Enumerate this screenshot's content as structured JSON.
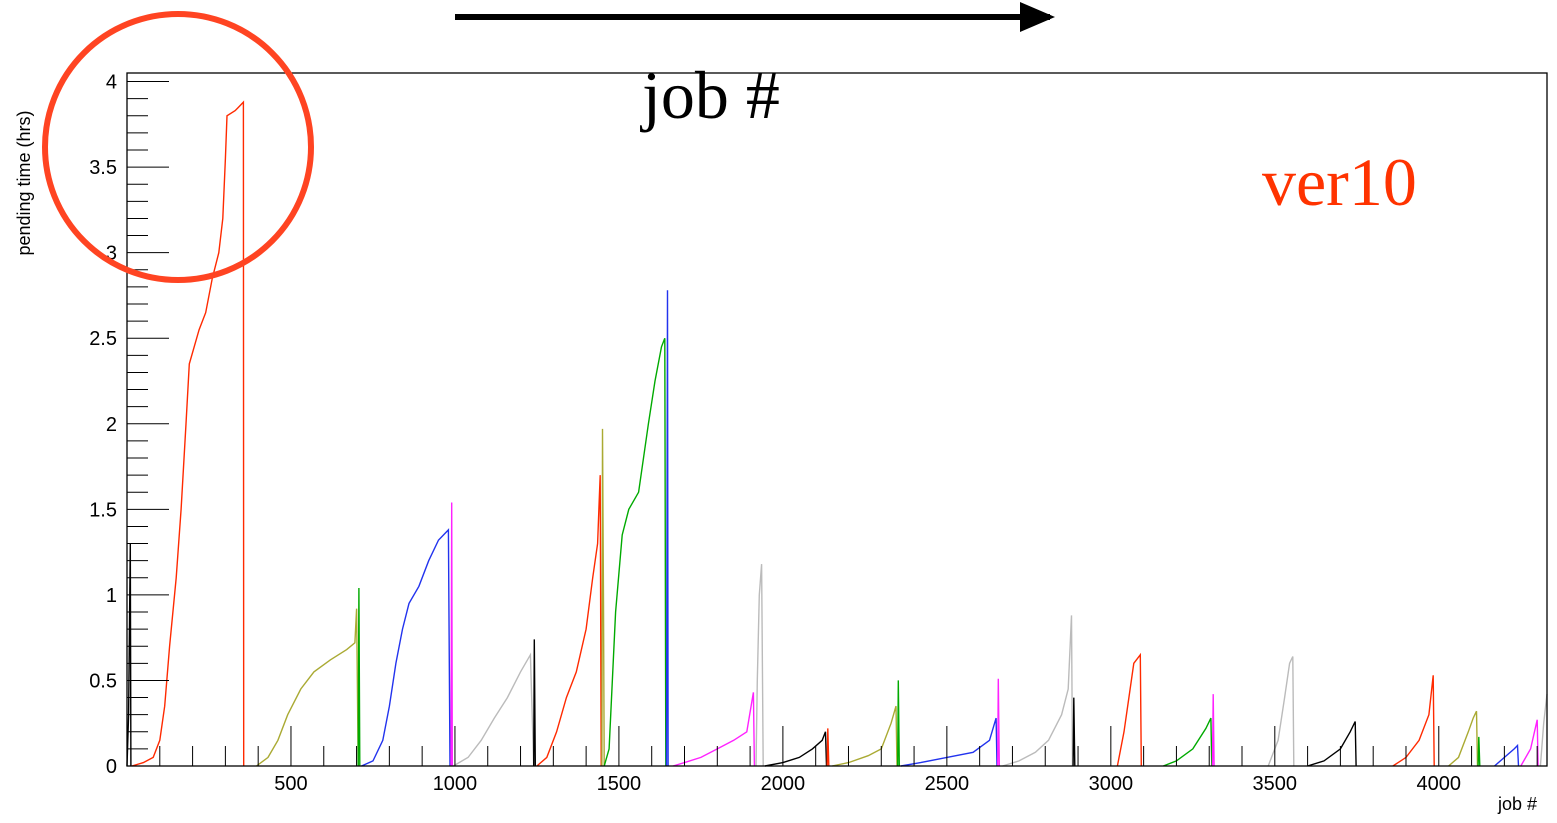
{
  "chart_data": {
    "type": "line",
    "title": "",
    "xlabel": "job #",
    "ylabel": "pending time (hrs)",
    "xlim": [
      0,
      4330
    ],
    "ylim": [
      0,
      4.05
    ],
    "x_ticks": [
      500,
      1000,
      1500,
      2000,
      2500,
      3000,
      3500,
      4000
    ],
    "y_ticks": [
      0,
      0.5,
      1,
      1.5,
      2,
      2.5,
      3,
      3.5,
      4
    ],
    "x_tick_labels": [
      "500",
      "1000",
      "1500",
      "2000",
      "2500",
      "3000",
      "3500",
      "4000"
    ],
    "y_tick_labels": [
      "0",
      "0.5",
      "1",
      "1.5",
      "2",
      "2.5",
      "3",
      "3.5",
      "4"
    ],
    "grid": false,
    "annotations": {
      "arrow_label": "job #",
      "version_label": "ver10",
      "version_color": "#ff3300",
      "circle_color": "#ff4422"
    },
    "series": [
      {
        "color": "#000000",
        "points": [
          [
            0,
            0
          ],
          [
            5,
            0.3
          ],
          [
            10,
            1.3
          ],
          [
            12,
            0
          ]
        ]
      },
      {
        "color": "#ff2a00",
        "points": [
          [
            15,
            0
          ],
          [
            50,
            0.02
          ],
          [
            80,
            0.05
          ],
          [
            100,
            0.15
          ],
          [
            115,
            0.35
          ],
          [
            130,
            0.7
          ],
          [
            150,
            1.1
          ],
          [
            165,
            1.5
          ],
          [
            180,
            2
          ],
          [
            190,
            2.35
          ],
          [
            205,
            2.45
          ],
          [
            220,
            2.55
          ],
          [
            240,
            2.65
          ],
          [
            260,
            2.85
          ],
          [
            280,
            3.0
          ],
          [
            292,
            3.2
          ],
          [
            300,
            3.55
          ],
          [
            305,
            3.8
          ],
          [
            330,
            3.83
          ],
          [
            340,
            3.85
          ],
          [
            355,
            3.88
          ],
          [
            356,
            0
          ]
        ]
      },
      {
        "color": "#aaaa33",
        "points": [
          [
            395,
            0
          ],
          [
            430,
            0.05
          ],
          [
            460,
            0.15
          ],
          [
            490,
            0.3
          ],
          [
            530,
            0.45
          ],
          [
            570,
            0.55
          ],
          [
            620,
            0.62
          ],
          [
            670,
            0.68
          ],
          [
            695,
            0.72
          ],
          [
            700,
            0.92
          ],
          [
            705,
            0
          ]
        ]
      },
      {
        "color": "#00aa00",
        "points": [
          [
            705,
            0
          ],
          [
            707,
            1.04
          ],
          [
            710,
            0
          ]
        ]
      },
      {
        "color": "#2233ee",
        "points": [
          [
            715,
            0
          ],
          [
            750,
            0.03
          ],
          [
            780,
            0.15
          ],
          [
            800,
            0.35
          ],
          [
            820,
            0.6
          ],
          [
            840,
            0.8
          ],
          [
            860,
            0.95
          ],
          [
            890,
            1.05
          ],
          [
            920,
            1.2
          ],
          [
            950,
            1.32
          ],
          [
            980,
            1.38
          ],
          [
            985,
            0
          ]
        ]
      },
      {
        "color": "#ff22ff",
        "points": [
          [
            988,
            0
          ],
          [
            990,
            1.54
          ],
          [
            992,
            0
          ]
        ]
      },
      {
        "color": "#bbbbbb",
        "points": [
          [
            995,
            0
          ],
          [
            1040,
            0.05
          ],
          [
            1080,
            0.15
          ],
          [
            1120,
            0.28
          ],
          [
            1160,
            0.4
          ],
          [
            1200,
            0.55
          ],
          [
            1230,
            0.65
          ],
          [
            1240,
            0
          ]
        ]
      },
      {
        "color": "#000000",
        "points": [
          [
            1240,
            0
          ],
          [
            1242,
            0.74
          ],
          [
            1245,
            0
          ]
        ]
      },
      {
        "color": "#ff2a00",
        "points": [
          [
            1250,
            0
          ],
          [
            1280,
            0.05
          ],
          [
            1310,
            0.2
          ],
          [
            1340,
            0.4
          ],
          [
            1370,
            0.55
          ],
          [
            1400,
            0.8
          ],
          [
            1420,
            1.1
          ],
          [
            1435,
            1.3
          ],
          [
            1440,
            1.55
          ],
          [
            1443,
            1.7
          ],
          [
            1446,
            0
          ]
        ]
      },
      {
        "color": "#aaaa33",
        "points": [
          [
            1448,
            0
          ],
          [
            1450,
            1.97
          ],
          [
            1453,
            0.95
          ],
          [
            1455,
            0
          ]
        ]
      },
      {
        "color": "#00aa00",
        "points": [
          [
            1455,
            0
          ],
          [
            1470,
            0.1
          ],
          [
            1490,
            0.9
          ],
          [
            1510,
            1.35
          ],
          [
            1530,
            1.5
          ],
          [
            1560,
            1.6
          ],
          [
            1590,
            2.0
          ],
          [
            1610,
            2.25
          ],
          [
            1630,
            2.45
          ],
          [
            1640,
            2.5
          ],
          [
            1643,
            0
          ]
        ]
      },
      {
        "color": "#2233ee",
        "points": [
          [
            1645,
            0
          ],
          [
            1648,
            2.78
          ],
          [
            1650,
            0
          ]
        ]
      },
      {
        "color": "#ff22ff",
        "points": [
          [
            1665,
            0
          ],
          [
            1700,
            0.02
          ],
          [
            1750,
            0.05
          ],
          [
            1800,
            0.1
          ],
          [
            1850,
            0.15
          ],
          [
            1890,
            0.2
          ],
          [
            1910,
            0.43
          ],
          [
            1913,
            0
          ]
        ]
      },
      {
        "color": "#bbbbbb",
        "points": [
          [
            1918,
            0
          ],
          [
            1922,
            0.5
          ],
          [
            1928,
            1.0
          ],
          [
            1935,
            1.18
          ],
          [
            1940,
            0
          ]
        ]
      },
      {
        "color": "#000000",
        "points": [
          [
            1945,
            0
          ],
          [
            2000,
            0.02
          ],
          [
            2050,
            0.05
          ],
          [
            2090,
            0.1
          ],
          [
            2120,
            0.15
          ],
          [
            2130,
            0.2
          ],
          [
            2133,
            0
          ]
        ]
      },
      {
        "color": "#ff2a00",
        "points": [
          [
            2135,
            0
          ],
          [
            2137,
            0.22
          ],
          [
            2140,
            0
          ]
        ]
      },
      {
        "color": "#aaaa33",
        "points": [
          [
            2150,
            0
          ],
          [
            2200,
            0.02
          ],
          [
            2260,
            0.06
          ],
          [
            2300,
            0.1
          ],
          [
            2330,
            0.25
          ],
          [
            2345,
            0.35
          ],
          [
            2348,
            0
          ]
        ]
      },
      {
        "color": "#00aa00",
        "points": [
          [
            2350,
            0
          ],
          [
            2352,
            0.5
          ],
          [
            2355,
            0
          ]
        ]
      },
      {
        "color": "#2233ee",
        "points": [
          [
            2360,
            0
          ],
          [
            2420,
            0.02
          ],
          [
            2500,
            0.05
          ],
          [
            2580,
            0.08
          ],
          [
            2630,
            0.15
          ],
          [
            2650,
            0.28
          ],
          [
            2653,
            0
          ]
        ]
      },
      {
        "color": "#ff22ff",
        "points": [
          [
            2655,
            0
          ],
          [
            2657,
            0.51
          ],
          [
            2660,
            0
          ]
        ]
      },
      {
        "color": "#bbbbbb",
        "points": [
          [
            2670,
            0
          ],
          [
            2720,
            0.03
          ],
          [
            2770,
            0.08
          ],
          [
            2810,
            0.15
          ],
          [
            2850,
            0.3
          ],
          [
            2870,
            0.45
          ],
          [
            2880,
            0.88
          ],
          [
            2883,
            0
          ]
        ]
      },
      {
        "color": "#000000",
        "points": [
          [
            2885,
            0
          ],
          [
            2887,
            0.4
          ],
          [
            2890,
            0
          ]
        ]
      },
      {
        "color": "#ff2a00",
        "points": [
          [
            3020,
            0
          ],
          [
            3040,
            0.2
          ],
          [
            3055,
            0.4
          ],
          [
            3070,
            0.6
          ],
          [
            3090,
            0.65
          ],
          [
            3093,
            0
          ]
        ]
      },
      {
        "color": "#00aa00",
        "points": [
          [
            3160,
            0
          ],
          [
            3200,
            0.03
          ],
          [
            3250,
            0.1
          ],
          [
            3290,
            0.22
          ],
          [
            3305,
            0.28
          ],
          [
            3308,
            0
          ]
        ]
      },
      {
        "color": "#ff22ff",
        "points": [
          [
            3310,
            0
          ],
          [
            3312,
            0.42
          ],
          [
            3315,
            0
          ]
        ]
      },
      {
        "color": "#bbbbbb",
        "points": [
          [
            3480,
            0
          ],
          [
            3510,
            0.15
          ],
          [
            3530,
            0.4
          ],
          [
            3545,
            0.6
          ],
          [
            3555,
            0.64
          ],
          [
            3558,
            0
          ]
        ]
      },
      {
        "color": "#000000",
        "points": [
          [
            3600,
            0
          ],
          [
            3650,
            0.03
          ],
          [
            3700,
            0.1
          ],
          [
            3730,
            0.2
          ],
          [
            3745,
            0.26
          ],
          [
            3748,
            0
          ]
        ]
      },
      {
        "color": "#ff2a00",
        "points": [
          [
            3860,
            0
          ],
          [
            3900,
            0.05
          ],
          [
            3940,
            0.15
          ],
          [
            3970,
            0.3
          ],
          [
            3983,
            0.53
          ],
          [
            3986,
            0
          ]
        ]
      },
      {
        "color": "#aaaa33",
        "points": [
          [
            4030,
            0
          ],
          [
            4060,
            0.05
          ],
          [
            4090,
            0.2
          ],
          [
            4105,
            0.28
          ],
          [
            4115,
            0.32
          ],
          [
            4118,
            0
          ]
        ]
      },
      {
        "color": "#00aa00",
        "points": [
          [
            4120,
            0
          ],
          [
            4122,
            0.17
          ],
          [
            4125,
            0
          ]
        ]
      },
      {
        "color": "#2233ee",
        "points": [
          [
            4170,
            0
          ],
          [
            4200,
            0.05
          ],
          [
            4230,
            0.1
          ],
          [
            4240,
            0.12
          ],
          [
            4243,
            0
          ]
        ]
      },
      {
        "color": "#ff22ff",
        "points": [
          [
            4250,
            0
          ],
          [
            4280,
            0.1
          ],
          [
            4300,
            0.27
          ],
          [
            4303,
            0
          ]
        ]
      },
      {
        "color": "#bbbbbb",
        "points": [
          [
            4310,
            0
          ],
          [
            4320,
            0.25
          ],
          [
            4330,
            0.42
          ]
        ]
      }
    ]
  }
}
